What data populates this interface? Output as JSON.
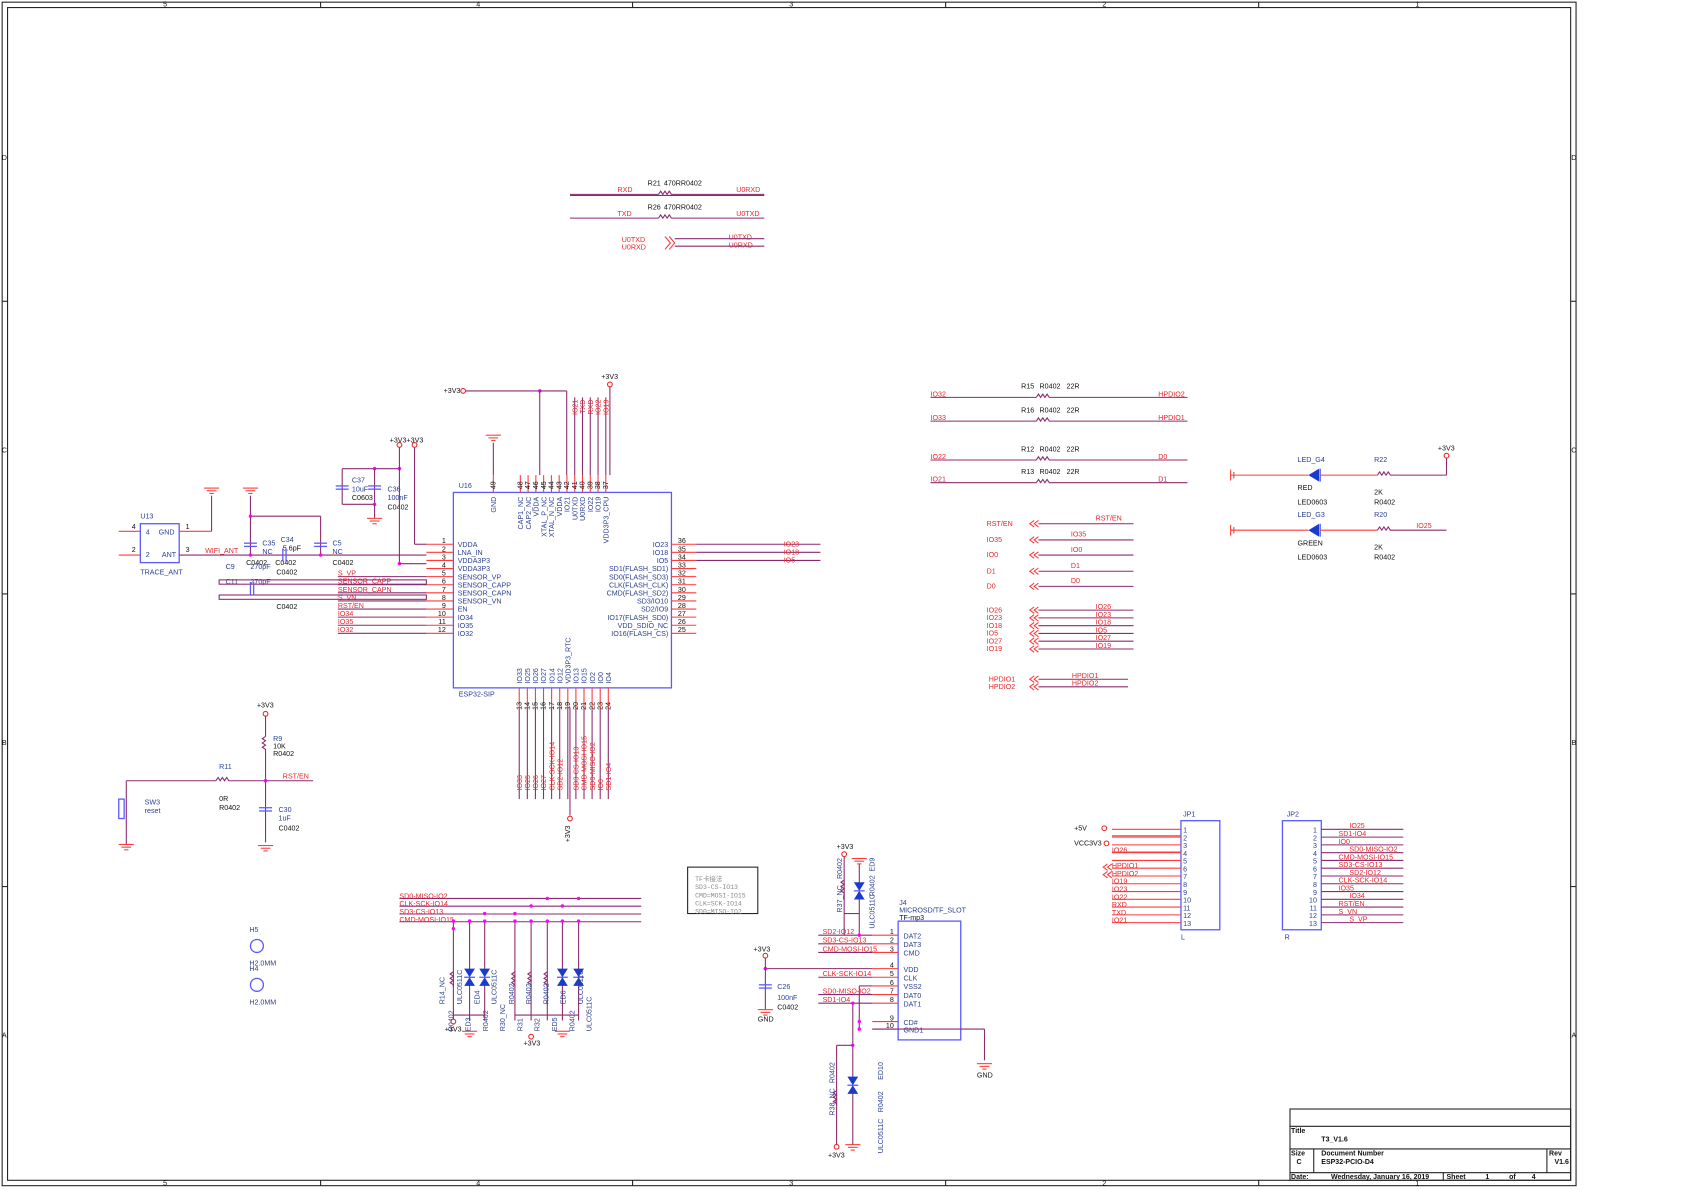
{
  "border": {
    "col_labels": [
      "5",
      "4",
      "3",
      "2",
      "1"
    ],
    "row_labels": [
      "D",
      "C",
      "B",
      "A"
    ]
  },
  "uart": {
    "r21": {
      "ref": "R21",
      "value": "470RR0402",
      "in": "RXD",
      "out": "U0RXD"
    },
    "r26": {
      "ref": "R26",
      "value": "470RR0402",
      "in": "TXD",
      "out": "U0TXD"
    },
    "cross_left": [
      "U0TXD",
      "U0RXD"
    ],
    "cross_right": [
      "U0TXD",
      "U0RXD"
    ]
  },
  "u16": {
    "ref": "U16",
    "part": "ESP32-SIP",
    "power_top": "+3V3",
    "power_left": "+3V3",
    "left_pins": [
      [
        "1",
        "VDDA"
      ],
      [
        "2",
        "LNA_IN"
      ],
      [
        "3",
        "VDDA3P3"
      ],
      [
        "4",
        "VDDA3P3"
      ],
      [
        "5",
        "SENSOR_VP"
      ],
      [
        "6",
        "SENSOR_CAPP"
      ],
      [
        "7",
        "SENSOR_CAPN"
      ],
      [
        "8",
        "SENSOR_VN"
      ],
      [
        "9",
        "EN"
      ],
      [
        "10",
        "IO34"
      ],
      [
        "11",
        "IO35"
      ],
      [
        "12",
        "IO32"
      ]
    ],
    "right_pins": [
      [
        "36",
        "IO23"
      ],
      [
        "35",
        "IO18"
      ],
      [
        "34",
        "IO5"
      ],
      [
        "33",
        "SD1(FLASH_SD1)"
      ],
      [
        "32",
        "SD0(FLASH_SD3)"
      ],
      [
        "31",
        "CLK(FLASH_CLK)"
      ],
      [
        "30",
        "CMD(FLASH_SD2)"
      ],
      [
        "29",
        "SD3/IO10"
      ],
      [
        "28",
        "SD2/IO9"
      ],
      [
        "27",
        "IO17(FLASH_SD0)"
      ],
      [
        "26",
        "VDD_SDIO_NC"
      ],
      [
        "25",
        "IO16(FLASH_CS)"
      ]
    ],
    "top_pins": [
      [
        "49",
        "GND"
      ],
      [
        "48",
        "CAP1_NC"
      ],
      [
        "47",
        "CAP2_NC"
      ],
      [
        "46",
        "VDDA"
      ],
      [
        "45",
        "XTAL_P_NC"
      ],
      [
        "44",
        "XTAL_N_NC"
      ],
      [
        "43",
        "VDDA"
      ],
      [
        "42",
        "IO21"
      ],
      [
        "41",
        "U0TXD"
      ],
      [
        "40",
        "U0RXD"
      ],
      [
        "39",
        "IO22"
      ],
      [
        "38",
        "IO19"
      ],
      [
        "37",
        "VDD3P3_CPU"
      ]
    ],
    "bottom_pins": [
      [
        "13",
        "IO33"
      ],
      [
        "14",
        "IO25"
      ],
      [
        "15",
        "IO26"
      ],
      [
        "16",
        "IO27"
      ],
      [
        "17",
        "IO14"
      ],
      [
        "18",
        "IO12"
      ],
      [
        "19",
        "VDD3P3_RTC"
      ],
      [
        "20",
        "IO13"
      ],
      [
        "21",
        "IO15"
      ],
      [
        "22",
        "IO2"
      ],
      [
        "23",
        "IO0"
      ],
      [
        "24",
        "IO4"
      ]
    ],
    "left_nets": [
      "S_VP",
      "SENSOR_CAPP",
      "SENSOR_CAPN",
      "S_VN",
      "RST/EN",
      "IO34",
      "IO35",
      "IO32"
    ],
    "right_nets": [
      "IO23",
      "IO18",
      "IO5"
    ],
    "top_nets": [
      "IO21",
      "TXD",
      "RXD",
      "IO22",
      "IO19"
    ],
    "bottom_nets": [
      "IO33",
      "IO25",
      "IO26",
      "IO27",
      "CLK-SCK-IO14",
      "SD2-IO12",
      "",
      "SD3-CS-IO13",
      "CMD-MOSI-IO15",
      "SD0-MISO-IO2",
      "IO0",
      "SD1-IO4"
    ],
    "bottom_power": "+3V3"
  },
  "antenna": {
    "u13": "U13",
    "u13_part": "TRACE_ANT",
    "gnd_pin": "GND",
    "ant_pin": "ANT",
    "pin4": "4",
    "pin2": "2",
    "pin1": "1",
    "pin3": "3",
    "net": "WIFI_ANT",
    "c35": [
      "C35",
      "NC",
      "C0402"
    ],
    "c34": [
      "C34",
      "5.6pF",
      "C0402"
    ],
    "c5": [
      "C5",
      "NC",
      "C0402"
    ],
    "c9": [
      "C9",
      "270pF",
      "C0402"
    ],
    "c11": [
      "C11",
      "270pF",
      "C0402"
    ],
    "c37": [
      "C37",
      "10uF",
      "C0603"
    ],
    "c36": [
      "C36",
      "100nF",
      "C0402"
    ],
    "vcc": "+3V3+3V3"
  },
  "hpd": {
    "rows": [
      [
        "IO32",
        "R15",
        "R0402",
        "22R",
        "HPDIO2"
      ],
      [
        "IO33",
        "R16",
        "R0402",
        "22R",
        "HPDIO1"
      ],
      [
        "IO22",
        "R12",
        "R0402",
        "22R",
        "D0"
      ],
      [
        "IO21",
        "R13",
        "R0402",
        "22R",
        "D1"
      ]
    ]
  },
  "leds": [
    {
      "ref": "LED_G4",
      "color": "RED",
      "pkg": "LED0603",
      "r": "R22",
      "rv": "2K",
      "rp": "R0402",
      "net": "+3V3"
    },
    {
      "ref": "LED_G3",
      "color": "GREEN",
      "pkg": "LED0603",
      "r": "R20",
      "rv": "2K",
      "rp": "R0402",
      "net": "IO25"
    }
  ],
  "ports": {
    "group1": [
      [
        "RST/EN",
        "RST/EN"
      ],
      [
        "IO35",
        "IO35"
      ],
      [
        "IO0",
        "IO0"
      ],
      [
        "D1",
        "D1"
      ],
      [
        "D0",
        "D0"
      ]
    ],
    "group2": [
      [
        "IO26",
        "IO26"
      ],
      [
        "IO23",
        "IO23"
      ],
      [
        "IO18",
        "IO18"
      ],
      [
        "IO5",
        "IO5"
      ],
      [
        "IO27",
        "IO27"
      ],
      [
        "IO19",
        "IO19"
      ]
    ],
    "group3": [
      [
        "HPDIO1",
        "HPDIO1"
      ],
      [
        "HPDIO2",
        "HPDIO2"
      ]
    ]
  },
  "reset": {
    "vcc": "+3V3",
    "r9": [
      "R9",
      "10K",
      "R0402"
    ],
    "r11": [
      "R11",
      "0R",
      "R0402"
    ],
    "net": "RST/EN",
    "sw": [
      "SW3",
      "reset"
    ],
    "c30": [
      "C30",
      "1uF",
      "C0402"
    ]
  },
  "holes": [
    [
      "H5",
      "H2.0MM"
    ],
    [
      "H4",
      "H2.0MM"
    ]
  ],
  "esd": {
    "bus": [
      "SD0-MISO-IO2",
      "CLK-SCK-IO14",
      "SD3-CS-IO13",
      "CMD-MOSI-IO15"
    ],
    "parts": [
      "R14_NC",
      "R0402",
      "ULC0511C",
      "ED3",
      "ED4",
      "R0402",
      "ULC0511C",
      "R30_NC",
      "R0402",
      "R31",
      "R0402",
      "R32",
      "R0402",
      "ED5",
      "ED6",
      "R0402",
      "ULC0511C",
      "ULC0511C"
    ],
    "vcc": "+3V3"
  },
  "tf_note": [
    "TF卡接法",
    "SD3-CS-IO13",
    "CMD=MOSI-IO15",
    "CLK=SCK-IO14",
    "SD0=MISO-IO2"
  ],
  "j4": {
    "ref": "J4",
    "part": "MICROSD/TF_SLOT",
    "value": "TF-mp3",
    "pins": [
      [
        "1",
        "DAT2",
        "SD2-IO12"
      ],
      [
        "2",
        "DAT3",
        "SD3-CS-IO13"
      ],
      [
        "3",
        "CMD",
        "CMD-MOSI-IO15"
      ],
      [
        "4",
        "VDD",
        ""
      ],
      [
        "5",
        "CLK",
        "CLK-SCK-IO14"
      ],
      [
        "6",
        "VSS2",
        ""
      ],
      [
        "7",
        "DAT0",
        "SD0-MISO-IO2"
      ],
      [
        "8",
        "DAT1",
        "SD1-IO4"
      ],
      [
        "9",
        "CD#",
        ""
      ],
      [
        "10",
        "GND1",
        ""
      ]
    ],
    "vcc": "+3V3",
    "gnd": "GND",
    "c26": [
      "C26",
      "100nF",
      "C0402"
    ],
    "r37": [
      "R37_NC",
      "R0402"
    ],
    "ed9": [
      "ED9",
      "R0402",
      "ULC0511C"
    ],
    "r38": [
      "R38_NC",
      "R0402"
    ],
    "ed10": [
      "ED10",
      "R0402",
      "ULC0511C"
    ],
    "vcc2": "+3V3",
    "vcc3": "+3V3",
    "gnd2": "GND"
  },
  "jp1": {
    "ref": "JP1",
    "side": "L",
    "pwr": [
      "+5V",
      "VCC3V3"
    ],
    "nets": [
      "",
      "",
      "",
      "IO26",
      "",
      "HPDIO1",
      "HPDIO2",
      "IO19",
      "IO23",
      "IO22",
      "RXD",
      "TXD",
      "IO21"
    ]
  },
  "jp2": {
    "ref": "JP2",
    "side": "R",
    "nets": [
      "IO25",
      "SD1-IO4",
      "IO0",
      "SD0-MISO-IO2",
      "CMD-MOSI-IO15",
      "SD3-CS-IO13",
      "SD2-IO12",
      "CLK-SCK-IO14",
      "IO35",
      "IO34",
      "RST/EN",
      "S_VN",
      "S_VP"
    ]
  },
  "title_block": {
    "title_label": "Title",
    "title": "T3_V1.6",
    "size_label": "Size",
    "size": "C",
    "docnum_label": "Document Number",
    "docnum": "ESP32-PCIO-D4",
    "rev_label": "Rev",
    "rev": "V1.6",
    "date_label": "Date:",
    "date": "Wednesday, January 16, 2019",
    "sheet_label": "Sheet",
    "sheet": "1",
    "of_label": "of",
    "sheets": "4"
  },
  "colors": {
    "net": "#e8262a",
    "wire": "#8c2a6e",
    "component": "#2b3f8f",
    "pin": "#ff3a3a",
    "junction": "#ff00ff"
  }
}
